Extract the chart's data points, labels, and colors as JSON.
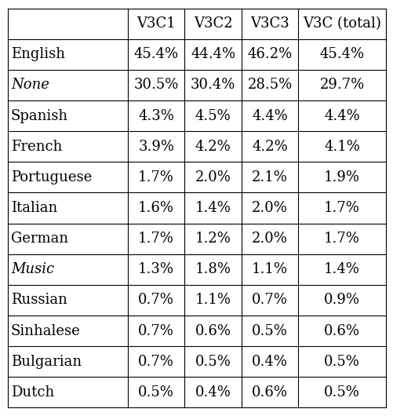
{
  "columns": [
    "V3C1",
    "V3C2",
    "V3C3",
    "V3C (total)"
  ],
  "rows": [
    {
      "label": "English",
      "italic": false,
      "values": [
        "45.4%",
        "44.4%",
        "46.2%",
        "45.4%"
      ]
    },
    {
      "label": "None",
      "italic": true,
      "values": [
        "30.5%",
        "30.4%",
        "28.5%",
        "29.7%"
      ]
    },
    {
      "label": "Spanish",
      "italic": false,
      "values": [
        "4.3%",
        "4.5%",
        "4.4%",
        "4.4%"
      ]
    },
    {
      "label": "French",
      "italic": false,
      "values": [
        "3.9%",
        "4.2%",
        "4.2%",
        "4.1%"
      ]
    },
    {
      "label": "Portuguese",
      "italic": false,
      "values": [
        "1.7%",
        "2.0%",
        "2.1%",
        "1.9%"
      ]
    },
    {
      "label": "Italian",
      "italic": false,
      "values": [
        "1.6%",
        "1.4%",
        "2.0%",
        "1.7%"
      ]
    },
    {
      "label": "German",
      "italic": false,
      "values": [
        "1.7%",
        "1.2%",
        "2.0%",
        "1.7%"
      ]
    },
    {
      "label": "Music",
      "italic": true,
      "values": [
        "1.3%",
        "1.8%",
        "1.1%",
        "1.4%"
      ]
    },
    {
      "label": "Russian",
      "italic": false,
      "values": [
        "0.7%",
        "1.1%",
        "0.7%",
        "0.9%"
      ]
    },
    {
      "label": "Sinhalese",
      "italic": false,
      "values": [
        "0.7%",
        "0.6%",
        "0.5%",
        "0.6%"
      ]
    },
    {
      "label": "Bulgarian",
      "italic": false,
      "values": [
        "0.7%",
        "0.5%",
        "0.4%",
        "0.5%"
      ]
    },
    {
      "label": "Dutch",
      "italic": false,
      "values": [
        "0.5%",
        "0.4%",
        "0.6%",
        "0.5%"
      ]
    }
  ],
  "background_color": "#ffffff",
  "line_color": "#000000",
  "text_color": "#000000",
  "fontsize": 13,
  "header_fontsize": 13
}
